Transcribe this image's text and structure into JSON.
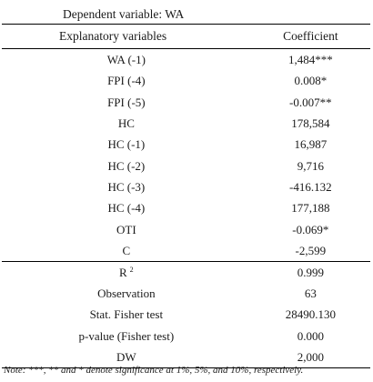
{
  "table": {
    "caption": "Dependent variable: WA",
    "header": {
      "variables": "Explanatory variables",
      "coefficient": "Coefficient"
    },
    "rows": [
      {
        "variable": "WA (-1)",
        "coefficient": "1,484***"
      },
      {
        "variable": "FPI (-4)",
        "coefficient": "0.008*"
      },
      {
        "variable": "FPI (-5)",
        "coefficient": "-0.007**"
      },
      {
        "variable": "HC",
        "coefficient": "178,584"
      },
      {
        "variable": "HC (-1)",
        "coefficient": "16,987"
      },
      {
        "variable": "HC (-2)",
        "coefficient": "9,716"
      },
      {
        "variable": "HC (-3)",
        "coefficient": "-416.132"
      },
      {
        "variable": "HC (-4)",
        "coefficient": "177,188"
      },
      {
        "variable": "OTI",
        "coefficient": "-0.069*"
      },
      {
        "variable": "C",
        "coefficient": "-2,599"
      }
    ],
    "stats": [
      {
        "label": "R",
        "superscript": "2",
        "value": "0.999"
      },
      {
        "label": "Observation",
        "value": "63"
      },
      {
        "label": "Stat. Fisher test",
        "value": "28490.130"
      },
      {
        "label": "p-value (Fisher test)",
        "value": "0.000"
      },
      {
        "label": "DW",
        "value": "2,000"
      }
    ]
  },
  "note": "Note: ***, ** and * denote significance at 1%, 5%, and 10%, respectively."
}
